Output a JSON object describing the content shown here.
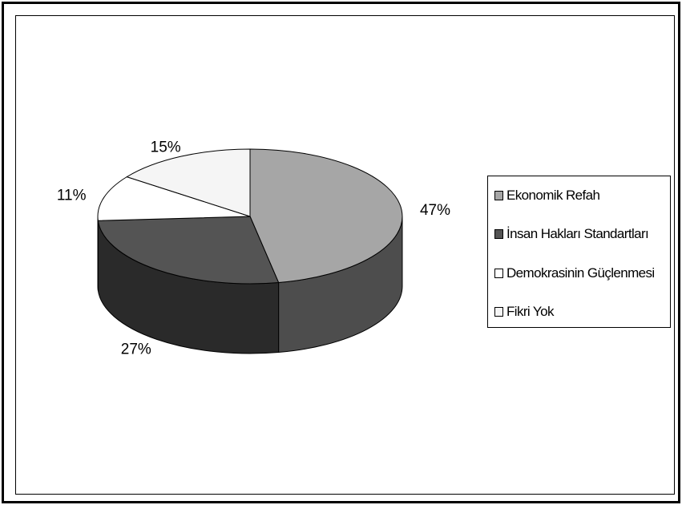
{
  "chart_data": {
    "type": "pie",
    "title": "",
    "categories": [
      "Ekonomik Refah",
      "İnsan Hakları Standartları",
      "Demokrasinin Güçlenmesi",
      "Fikri Yok"
    ],
    "values": [
      47,
      27,
      11,
      15
    ],
    "labels": [
      "47%",
      "27%",
      "11%",
      "15%"
    ],
    "colors": [
      "#a6a6a6",
      "#545454",
      "#ffffff",
      "#f5f5f5"
    ],
    "side_colors": [
      "#4d4d4d",
      "#2a2a2a",
      "#cccccc",
      "#d0d0d0"
    ],
    "legend_position": "right",
    "three_d": true
  }
}
